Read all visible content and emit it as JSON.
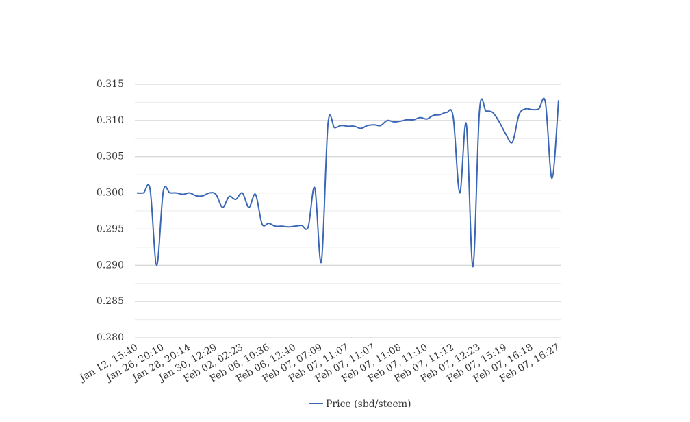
{
  "chart_data": {
    "type": "line",
    "categories": [
      "Jan 12, 15:40",
      null,
      null,
      null,
      "Jan 26, 20:10",
      null,
      null,
      null,
      "Jan 28, 20:14",
      null,
      null,
      null,
      "Jan 30, 12:29",
      null,
      null,
      null,
      "Feb 02, 02:23",
      null,
      null,
      null,
      "Feb 06, 10:36",
      null,
      null,
      null,
      "Feb 06, 12:40",
      null,
      null,
      null,
      "Feb 07, 07:09",
      null,
      null,
      null,
      "Feb 07, 11:07",
      null,
      null,
      null,
      "Feb 07, 11:07",
      null,
      null,
      null,
      "Feb 07, 11:08",
      null,
      null,
      null,
      "Feb 07, 11:10",
      null,
      null,
      null,
      "Feb 07, 11:12",
      null,
      null,
      null,
      "Feb 07, 12:23",
      null,
      null,
      null,
      "Feb 07, 15:19",
      null,
      null,
      null,
      "Feb 07, 16:18",
      null,
      null,
      null,
      "Feb 07, 16:27"
    ],
    "series": [
      {
        "name": "Price (sbd/steem)",
        "color": "#3a66b6",
        "values": [
          0.3,
          0.3,
          0.3005,
          0.29,
          0.3002,
          0.3,
          0.3,
          0.2998,
          0.3,
          0.2996,
          0.2996,
          0.3,
          0.2998,
          0.298,
          0.2995,
          0.2991,
          0.3,
          0.298,
          0.2998,
          0.2957,
          0.2958,
          0.2954,
          0.2954,
          0.2953,
          0.2954,
          0.2955,
          0.2953,
          0.3007,
          0.2905,
          0.3095,
          0.309,
          0.3093,
          0.3092,
          0.3092,
          0.3089,
          0.3093,
          0.3094,
          0.3093,
          0.31,
          0.3098,
          0.3099,
          0.3101,
          0.3101,
          0.3104,
          0.3102,
          0.3107,
          0.3108,
          0.3111,
          0.3105,
          0.3,
          0.3095,
          0.2898,
          0.3114,
          0.3113,
          0.3111,
          0.3098,
          0.3081,
          0.307,
          0.3108,
          0.3116,
          0.3115,
          0.3116,
          0.3125,
          0.302,
          0.3128
        ]
      }
    ],
    "ylim": [
      0.28,
      0.315
    ],
    "yticks": [
      {
        "value": 0.28,
        "label": "0.280"
      },
      {
        "value": 0.285,
        "label": "0.285"
      },
      {
        "value": 0.29,
        "label": "0.290"
      },
      {
        "value": 0.295,
        "label": "0.295"
      },
      {
        "value": 0.3,
        "label": "0.300"
      },
      {
        "value": 0.305,
        "label": "0.305"
      },
      {
        "value": 0.31,
        "label": "0.310"
      },
      {
        "value": 0.315,
        "label": "0.315"
      }
    ],
    "grid": true,
    "minor_grid": true,
    "legend": "bottom"
  }
}
